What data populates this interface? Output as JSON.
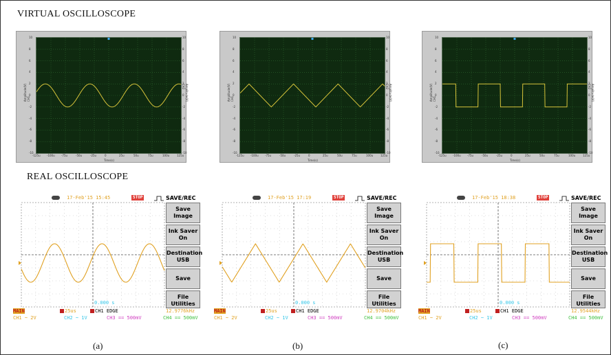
{
  "headings": {
    "virtual": "VIRTUAL OSCILLOSCOPE",
    "real": "REAL OSCILLOSCOPE"
  },
  "captions": [
    "(a)",
    "(b)",
    "(c)"
  ],
  "virtual": {
    "ylabel": "Amplitude(V)\nCH1",
    "ylabel_right": "Amplitude(V)\nCH2",
    "xlabel": "Time(s)",
    "y_ticks": [
      "10",
      "8",
      "6",
      "4",
      "2",
      "0",
      "-2",
      "-4",
      "-6",
      "-8",
      "-10"
    ],
    "x_ticks": [
      "-125u",
      "-100u",
      "-75u",
      "-50u",
      "-25u",
      "0",
      "25u",
      "50u",
      "75u",
      "100u",
      "125u"
    ],
    "waveform_color": "#d8c43a",
    "grid_color": "#2f6a2f",
    "plot_bg": "#0f2a10",
    "chart_data": [
      {
        "type": "line",
        "waveform": "sine",
        "amplitude": 2,
        "period_us": 77,
        "xlim": [
          -125,
          125
        ],
        "ylim": [
          -10,
          10
        ]
      },
      {
        "type": "line",
        "waveform": "triangle",
        "amplitude": 2,
        "period_us": 77,
        "xlim": [
          -125,
          125
        ],
        "ylim": [
          -10,
          10
        ]
      },
      {
        "type": "line",
        "waveform": "square",
        "amplitude": 2,
        "period_us": 77,
        "xlim": [
          -125,
          125
        ],
        "ylim": [
          -10,
          10
        ]
      }
    ]
  },
  "real": {
    "menu_title": "SAVE/REC",
    "menu": [
      {
        "lines": [
          "Save",
          "Image"
        ]
      },
      {
        "lines": [
          "Ink Saver",
          "On"
        ]
      },
      {
        "lines": [
          "Destination",
          "USB"
        ]
      },
      {
        "lines": [
          "Save"
        ]
      },
      {
        "lines": [
          "File",
          "Utilities"
        ]
      }
    ],
    "stop": "STOP",
    "cursor_readout": "0.000 s",
    "main_badge": "MAIN",
    "timebase": "25us",
    "trigger": "CH1  EDGE",
    "ch1": "CH1  ~ 2V",
    "ch2": "CH2  ~ 1V",
    "ch3": "CH3  == 500mV",
    "ch4": "CH4  == 500mV",
    "waveform_color": "#e0a020",
    "scopes": [
      {
        "timestamp": "17-Feb'15  15:45",
        "frequency": "12.9776kHz",
        "waveform": "sine"
      },
      {
        "timestamp": "17-Feb'15  17:19",
        "frequency": "12.9704kHz",
        "waveform": "triangle"
      },
      {
        "timestamp": "17-Feb'15  18:38",
        "frequency": "12.9544kHz",
        "waveform": "square"
      }
    ]
  }
}
